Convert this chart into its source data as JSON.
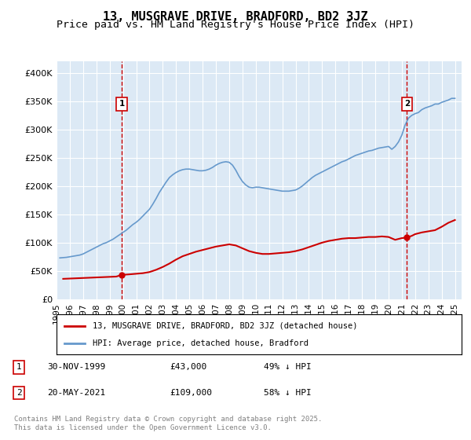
{
  "title": "13, MUSGRAVE DRIVE, BRADFORD, BD2 3JZ",
  "subtitle": "Price paid vs. HM Land Registry's House Price Index (HPI)",
  "title_fontsize": 11,
  "subtitle_fontsize": 9.5,
  "background_color": "#dce9f5",
  "plot_bg_color": "#dce9f5",
  "fig_bg_color": "#ffffff",
  "ylim": [
    0,
    420000
  ],
  "yticks": [
    0,
    50000,
    100000,
    150000,
    200000,
    250000,
    300000,
    350000,
    400000
  ],
  "ytick_labels": [
    "£0",
    "£50K",
    "£100K",
    "£150K",
    "£200K",
    "£250K",
    "£300K",
    "£350K",
    "£400K"
  ],
  "xlim_start": 1995.0,
  "xlim_end": 2025.5,
  "xtick_years": [
    1995,
    1996,
    1997,
    1998,
    1999,
    2000,
    2001,
    2002,
    2003,
    2004,
    2005,
    2006,
    2007,
    2008,
    2009,
    2010,
    2011,
    2012,
    2013,
    2014,
    2015,
    2016,
    2017,
    2018,
    2019,
    2020,
    2021,
    2022,
    2023,
    2024,
    2025
  ],
  "sale1_x": 1999.917,
  "sale1_y": 43000,
  "sale1_label": "1",
  "sale2_x": 2021.385,
  "sale2_y": 109000,
  "sale2_label": "2",
  "red_line_color": "#cc0000",
  "blue_line_color": "#6699cc",
  "dashed_color": "#cc0000",
  "legend_label_red": "13, MUSGRAVE DRIVE, BRADFORD, BD2 3JZ (detached house)",
  "legend_label_blue": "HPI: Average price, detached house, Bradford",
  "annotation1_text": "30-NOV-1999         £43,000        49% ↓ HPI",
  "annotation2_text": "20-MAY-2021         £109,000        58% ↓ HPI",
  "footer_text": "Contains HM Land Registry data © Crown copyright and database right 2025.\nThis data is licensed under the Open Government Licence v3.0.",
  "hpi_data": {
    "years": [
      1995.25,
      1995.5,
      1995.75,
      1996.0,
      1996.25,
      1996.5,
      1996.75,
      1997.0,
      1997.25,
      1997.5,
      1997.75,
      1998.0,
      1998.25,
      1998.5,
      1998.75,
      1999.0,
      1999.25,
      1999.5,
      1999.75,
      2000.0,
      2000.25,
      2000.5,
      2000.75,
      2001.0,
      2001.25,
      2001.5,
      2001.75,
      2002.0,
      2002.25,
      2002.5,
      2002.75,
      2003.0,
      2003.25,
      2003.5,
      2003.75,
      2004.0,
      2004.25,
      2004.5,
      2004.75,
      2005.0,
      2005.25,
      2005.5,
      2005.75,
      2006.0,
      2006.25,
      2006.5,
      2006.75,
      2007.0,
      2007.25,
      2007.5,
      2007.75,
      2008.0,
      2008.25,
      2008.5,
      2008.75,
      2009.0,
      2009.25,
      2009.5,
      2009.75,
      2010.0,
      2010.25,
      2010.5,
      2010.75,
      2011.0,
      2011.25,
      2011.5,
      2011.75,
      2012.0,
      2012.25,
      2012.5,
      2012.75,
      2013.0,
      2013.25,
      2013.5,
      2013.75,
      2014.0,
      2014.25,
      2014.5,
      2014.75,
      2015.0,
      2015.25,
      2015.5,
      2015.75,
      2016.0,
      2016.25,
      2016.5,
      2016.75,
      2017.0,
      2017.25,
      2017.5,
      2017.75,
      2018.0,
      2018.25,
      2018.5,
      2018.75,
      2019.0,
      2019.25,
      2019.5,
      2019.75,
      2020.0,
      2020.25,
      2020.5,
      2020.75,
      2021.0,
      2021.25,
      2021.5,
      2021.75,
      2022.0,
      2022.25,
      2022.5,
      2022.75,
      2023.0,
      2023.25,
      2023.5,
      2023.75,
      2024.0,
      2024.25,
      2024.5,
      2024.75,
      2025.0
    ],
    "values": [
      73000,
      73500,
      74000,
      75000,
      76000,
      77000,
      78000,
      80000,
      83000,
      86000,
      89000,
      92000,
      95000,
      98000,
      100000,
      103000,
      106000,
      110000,
      114000,
      118000,
      122000,
      127000,
      132000,
      136000,
      141000,
      147000,
      153000,
      159000,
      168000,
      178000,
      189000,
      198000,
      207000,
      215000,
      220000,
      224000,
      227000,
      229000,
      230000,
      230000,
      229000,
      228000,
      227000,
      227000,
      228000,
      230000,
      233000,
      237000,
      240000,
      242000,
      243000,
      242000,
      237000,
      228000,
      217000,
      208000,
      202000,
      198000,
      197000,
      198000,
      198000,
      197000,
      196000,
      195000,
      194000,
      193000,
      192000,
      191000,
      191000,
      191000,
      192000,
      193000,
      196000,
      200000,
      205000,
      210000,
      215000,
      219000,
      222000,
      225000,
      228000,
      231000,
      234000,
      237000,
      240000,
      243000,
      245000,
      248000,
      251000,
      254000,
      256000,
      258000,
      260000,
      262000,
      263000,
      265000,
      267000,
      268000,
      269000,
      270000,
      265000,
      270000,
      278000,
      290000,
      308000,
      320000,
      325000,
      328000,
      330000,
      335000,
      338000,
      340000,
      342000,
      345000,
      345000,
      348000,
      350000,
      352000,
      355000,
      355000
    ]
  },
  "price_paid_data": {
    "years": [
      1995.5,
      1996.0,
      1996.5,
      1997.0,
      1997.5,
      1998.0,
      1998.5,
      1999.0,
      1999.5,
      1999.917,
      2000.5,
      2001.0,
      2001.5,
      2002.0,
      2002.5,
      2003.0,
      2003.5,
      2004.0,
      2004.5,
      2005.0,
      2005.5,
      2006.0,
      2006.5,
      2007.0,
      2007.5,
      2008.0,
      2008.5,
      2009.0,
      2009.5,
      2010.0,
      2010.5,
      2011.0,
      2011.5,
      2012.0,
      2012.5,
      2013.0,
      2013.5,
      2014.0,
      2014.5,
      2015.0,
      2015.5,
      2016.0,
      2016.5,
      2017.0,
      2017.5,
      2018.0,
      2018.5,
      2019.0,
      2019.5,
      2020.0,
      2020.5,
      2021.0,
      2021.385,
      2021.75,
      2022.0,
      2022.5,
      2023.0,
      2023.5,
      2024.0,
      2024.5,
      2025.0
    ],
    "values": [
      36000,
      36500,
      37000,
      37500,
      38000,
      38500,
      39000,
      39500,
      40000,
      43000,
      44000,
      45000,
      46000,
      48000,
      52000,
      57000,
      63000,
      70000,
      76000,
      80000,
      84000,
      87000,
      90000,
      93000,
      95000,
      97000,
      95000,
      90000,
      85000,
      82000,
      80000,
      80000,
      81000,
      82000,
      83000,
      85000,
      88000,
      92000,
      96000,
      100000,
      103000,
      105000,
      107000,
      108000,
      108000,
      109000,
      110000,
      110000,
      111000,
      110000,
      105000,
      108000,
      109000,
      112000,
      115000,
      118000,
      120000,
      122000,
      128000,
      135000,
      140000
    ]
  }
}
